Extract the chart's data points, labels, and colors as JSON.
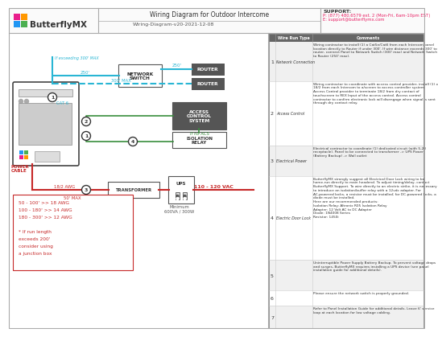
{
  "title": "Wiring Diagram for Outdoor Intercome",
  "subtitle": "Wiring-Diagram-v20-2021-12-08",
  "support_line1": "SUPPORT:",
  "support_line2": "P: (877) 480.6579 ext. 2 (Mon-Fri, 6am-10pm EST)",
  "support_line3": "E: support@butterflymx.com",
  "bg_color": "#ffffff",
  "table_header_bg": "#666666",
  "cyan": "#29b6d4",
  "green": "#388e3c",
  "red": "#c62828",
  "dark": "#424242",
  "rows": [
    {
      "num": "1",
      "type": "Network Connection",
      "comment": "Wiring contractor to install (1) a Cat5e/Cat6 from each Intercom panel location directly to Router if under 300'. If wire distance exceeds 300' to router, connect Panel to Network Switch (300' max) and Network Switch to Router (250' max)."
    },
    {
      "num": "2",
      "type": "Access Control",
      "comment": "Wiring contractor to coordinate with access control provider, install (1) x 18/2 from each Intercom to a/screen to access controller system. Access Control provider to terminate 18/2 from dry contact of touchscreen to REX Input of the access control. Access control contractor to confirm electronic lock will disengage when signal is sent through dry contact relay."
    },
    {
      "num": "3",
      "type": "Electrical Power",
      "comment": "Electrical contractor to coordinate (1) dedicated circuit (with 5-20 receptacle). Panel to be connected to transformer -> UPS Power (Battery Backup) -> Wall outlet"
    },
    {
      "num": "4",
      "type": "Electric Door Lock",
      "comment": "ButterflyMX strongly suggest all Electrical Door Lock wiring to be home-run directly to main headend. To adjust timing/delay, contact ButterflyMX Support. To wire directly to an electric strike, it is necessary to introduce an isolation/buffer relay with a 12vdc adapter. For AC-powered locks, a resistor must be installed; for DC-powered locks, a diode must be installed.\nHere are our recommended products:\nIsolation Relay: Altronix R05 Isolation Relay\nAdapter: 12 Volt AC to DC Adapter\nDiode: 1N4008 Series\nResistor: 1450i"
    },
    {
      "num": "5",
      "type": "",
      "comment": "Uninterruptible Power Supply Battery Backup. To prevent voltage drops and surges, ButterflyMX requires installing a UPS device (see panel installation guide for additional details)."
    },
    {
      "num": "6",
      "type": "",
      "comment": "Please ensure the network switch is properly grounded."
    },
    {
      "num": "7",
      "type": "",
      "comment": "Refer to Panel Installation Guide for additional details. Leave 6' service loop at each location for low voltage cabling."
    }
  ]
}
